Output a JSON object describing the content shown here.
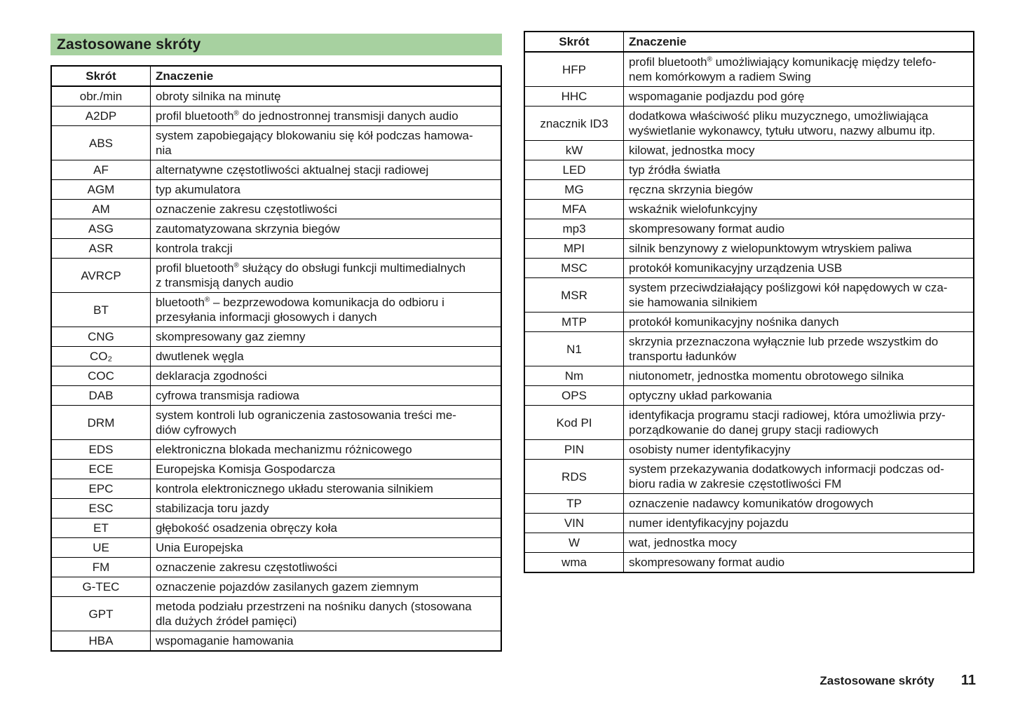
{
  "title": "Zastosowane skróty",
  "table_header": {
    "abbr": "Skrót",
    "meaning": "Znaczenie"
  },
  "left_table_rows": [
    {
      "abbr": "obr./min",
      "meaning": "obroty silnika na minutę"
    },
    {
      "abbr": "A2DP",
      "meaning": "profil bluetooth® do jednostronnej transmisji danych audio"
    },
    {
      "abbr": "ABS",
      "meaning": "system zapobiegający blokowaniu się kół podczas hamowa-\nnia"
    },
    {
      "abbr": "AF",
      "meaning": "alternatywne częstotliwości aktualnej stacji radiowej"
    },
    {
      "abbr": "AGM",
      "meaning": "typ akumulatora"
    },
    {
      "abbr": "AM",
      "meaning": "oznaczenie zakresu częstotliwości"
    },
    {
      "abbr": "ASG",
      "meaning": "zautomatyzowana skrzynia biegów"
    },
    {
      "abbr": "ASR",
      "meaning": "kontrola trakcji"
    },
    {
      "abbr": "AVRCP",
      "meaning": "profil bluetooth® służący do obsługi funkcji multimedialnych\nz transmisją danych audio"
    },
    {
      "abbr": "BT",
      "meaning": "bluetooth® – bezprzewodowa komunikacja do odbioru i\nprzesyłania informacji głosowych i danych"
    },
    {
      "abbr": "CNG",
      "meaning": "skompresowany gaz ziemny"
    },
    {
      "abbr": "CO₂",
      "meaning": "dwutlenek węgla"
    },
    {
      "abbr": "COC",
      "meaning": "deklaracja zgodności"
    },
    {
      "abbr": "DAB",
      "meaning": "cyfrowa transmisja radiowa"
    },
    {
      "abbr": "DRM",
      "meaning": "system kontroli lub ograniczenia zastosowania treści me-\ndiów cyfrowych"
    },
    {
      "abbr": "EDS",
      "meaning": "elektroniczna blokada mechanizmu różnicowego"
    },
    {
      "abbr": "ECE",
      "meaning": "Europejska Komisja Gospodarcza"
    },
    {
      "abbr": "EPC",
      "meaning": "kontrola elektronicznego układu sterowania silnikiem"
    },
    {
      "abbr": "ESC",
      "meaning": "stabilizacja toru jazdy"
    },
    {
      "abbr": "ET",
      "meaning": "głębokość osadzenia obręczy koła"
    },
    {
      "abbr": "UE",
      "meaning": "Unia Europejska"
    },
    {
      "abbr": "FM",
      "meaning": "oznaczenie zakresu częstotliwości"
    },
    {
      "abbr": "G-TEC",
      "meaning": "oznaczenie pojazdów zasilanych gazem ziemnym"
    },
    {
      "abbr": "GPT",
      "meaning": "metoda podziału przestrzeni na nośniku danych (stosowana\ndla dużych źródeł pamięci)"
    },
    {
      "abbr": "HBA",
      "meaning": "wspomaganie hamowania"
    }
  ],
  "right_table_rows": [
    {
      "abbr": "HFP",
      "meaning": "profil bluetooth® umożliwiający komunikację między telefo-\nnem komórkowym a radiem Swing"
    },
    {
      "abbr": "HHC",
      "meaning": "wspomaganie podjazdu pod górę"
    },
    {
      "abbr": "znacznik ID3",
      "meaning": "dodatkowa właściwość pliku muzycznego, umożliwiająca\nwyświetlanie wykonawcy, tytułu utworu, nazwy albumu itp."
    },
    {
      "abbr": "kW",
      "meaning": "kilowat, jednostka mocy"
    },
    {
      "abbr": "LED",
      "meaning": "typ źródła światła"
    },
    {
      "abbr": "MG",
      "meaning": "ręczna skrzynia biegów"
    },
    {
      "abbr": "MFA",
      "meaning": "wskaźnik wielofunkcyjny"
    },
    {
      "abbr": "mp3",
      "meaning": "skompresowany format audio"
    },
    {
      "abbr": "MPI",
      "meaning": "silnik benzynowy z wielopunktowym wtryskiem paliwa"
    },
    {
      "abbr": "MSC",
      "meaning": "protokół komunikacyjny urządzenia USB"
    },
    {
      "abbr": "MSR",
      "meaning": "system przeciwdziałający poślizgowi kół napędowych w cza-\nsie hamowania silnikiem"
    },
    {
      "abbr": "MTP",
      "meaning": "protokół komunikacyjny nośnika danych"
    },
    {
      "abbr": "N1",
      "meaning": "skrzynia przeznaczona wyłącznie lub przede wszystkim do\ntransportu ładunków"
    },
    {
      "abbr": "Nm",
      "meaning": "niutonometr, jednostka momentu obrotowego silnika"
    },
    {
      "abbr": "OPS",
      "meaning": "optyczny układ parkowania"
    },
    {
      "abbr": "Kod PI",
      "meaning": "identyfikacja programu stacji radiowej, która umożliwia przy-\nporządkowanie do danej grupy stacji radiowych"
    },
    {
      "abbr": "PIN",
      "meaning": "osobisty numer identyfikacyjny"
    },
    {
      "abbr": "RDS",
      "meaning": "system przekazywania dodatkowych informacji podczas od-\nbioru radia w zakresie częstotliwości FM"
    },
    {
      "abbr": "TP",
      "meaning": "oznaczenie nadawcy komunikatów drogowych"
    },
    {
      "abbr": "VIN",
      "meaning": "numer identyfikacyjny pojazdu"
    },
    {
      "abbr": "W",
      "meaning": "wat, jednostka mocy"
    },
    {
      "abbr": "wma",
      "meaning": "skompresowany format audio"
    }
  ],
  "footer": {
    "chapter": "Zastosowane skróty",
    "page_number": "11"
  },
  "colors": {
    "title_bar_green": "#a7d1a0",
    "text": "#1a1a1a",
    "table_border": "#000000",
    "background": "#ffffff"
  }
}
